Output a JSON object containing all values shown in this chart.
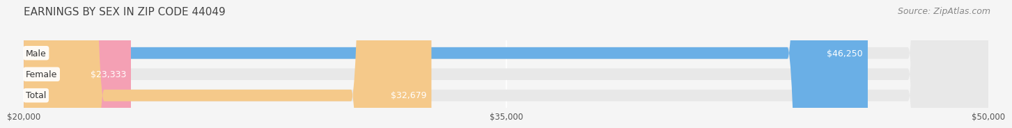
{
  "title": "EARNINGS BY SEX IN ZIP CODE 44049",
  "source": "Source: ZipAtlas.com",
  "categories": [
    "Male",
    "Female",
    "Total"
  ],
  "values": [
    46250,
    23333,
    32679
  ],
  "bar_colors": [
    "#6aafe6",
    "#f4a0b4",
    "#f5c98a"
  ],
  "value_labels": [
    "$46,250",
    "$23,333",
    "$32,679"
  ],
  "xmin": 20000,
  "xmax": 50000,
  "xticks": [
    20000,
    35000,
    50000
  ],
  "xtick_labels": [
    "$20,000",
    "$35,000",
    "$50,000"
  ],
  "background_color": "#f5f5f5",
  "bar_background_color": "#e8e8e8",
  "title_fontsize": 11,
  "source_fontsize": 9,
  "bar_height": 0.55,
  "label_fontsize": 9,
  "value_fontsize": 9
}
